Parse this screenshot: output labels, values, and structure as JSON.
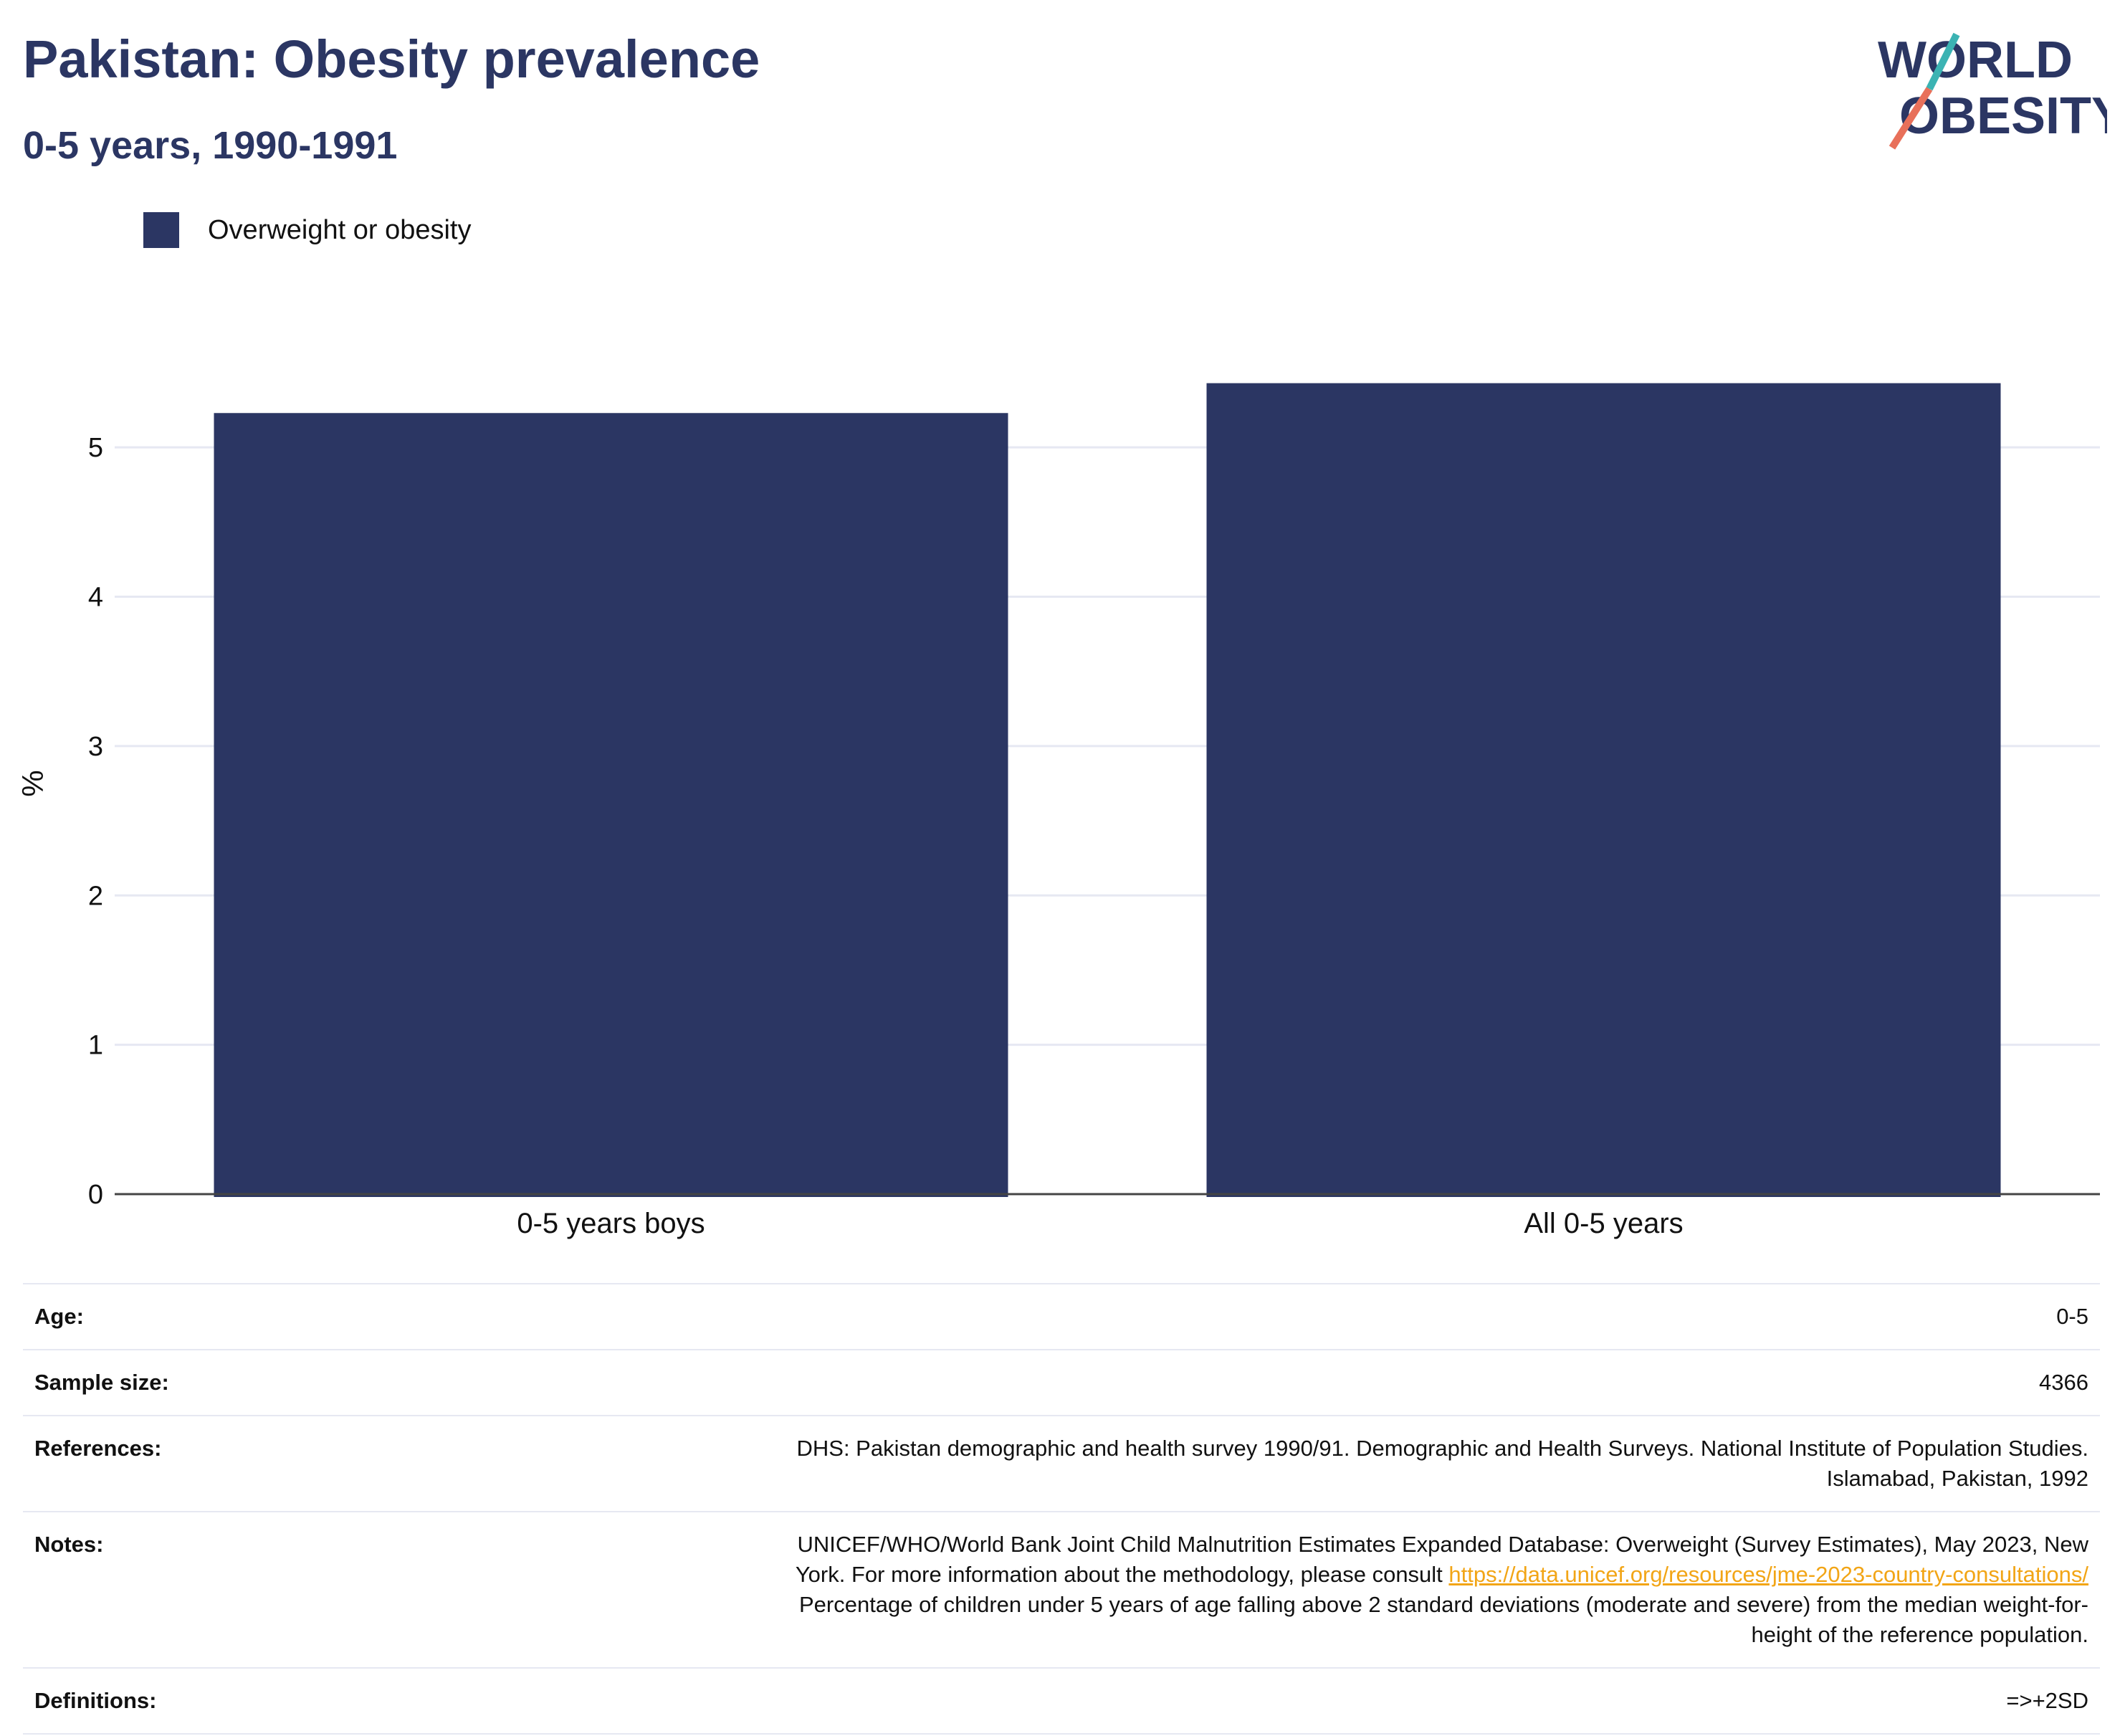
{
  "title": "Pakistan: Obesity prevalence",
  "subtitle": "0-5 years, 1990-1991",
  "logo": {
    "line1": "WORLD",
    "line2": "OBESITY",
    "accent_teal": "#3bb3b3",
    "accent_coral": "#e8705a"
  },
  "colors": {
    "bar": "#2b3663",
    "text": "#2b3663",
    "grid": "#e6e8f2",
    "link": "#f2a516"
  },
  "chart_data": {
    "type": "bar",
    "categories": [
      "0-5 years boys",
      "All 0-5 years"
    ],
    "series": [
      {
        "name": "Overweight or obesity",
        "values": [
          5.23,
          5.43
        ]
      }
    ],
    "ylabel": "%",
    "ylim": [
      0,
      5.5
    ],
    "yticks": [
      0,
      1,
      2,
      3,
      4,
      5
    ],
    "grid": true,
    "legend": "top-left"
  },
  "info": {
    "age": {
      "label": "Age:",
      "value": "0-5"
    },
    "sample_size": {
      "label": "Sample size:",
      "value": "4366"
    },
    "references": {
      "label": "References:",
      "line1": "DHS: Pakistan demographic and health survey 1990/91. Demographic and Health Surveys. National Institute of Population Studies.",
      "line2": "Islamabad, Pakistan, 1992"
    },
    "notes": {
      "label": "Notes:",
      "line1": "UNICEF/WHO/World Bank Joint Child Malnutrition Estimates Expanded Database: Overweight (Survey Estimates), May 2023, New",
      "line2_prefix": "York. For more information about the methodology, please consult ",
      "link": "https://data.unicef.org/resources/jme-2023-country-consultations/",
      "line3": "Percentage of children under 5 years of age falling above 2 standard deviations (moderate and severe) from the median weight-for-",
      "line4": "height of the reference population."
    },
    "definitions": {
      "label": "Definitions:",
      "value": "=>+2SD"
    }
  }
}
